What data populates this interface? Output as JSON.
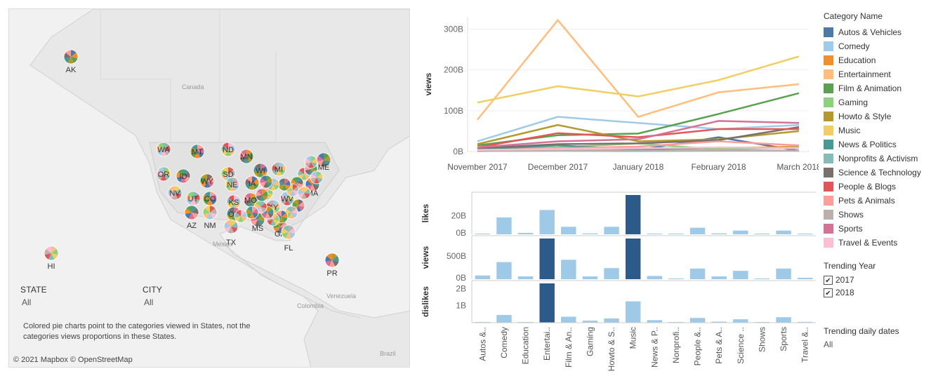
{
  "map": {
    "country_labels": [
      "Canada",
      "Mexico",
      "Colombia",
      "Venezuela",
      "Brazil"
    ],
    "state_labels": [
      "AK",
      "HI",
      "PR",
      "WA",
      "MT",
      "ND",
      "MN",
      "OR",
      "ID",
      "SD",
      "WI",
      "MI",
      "ME",
      "NV",
      "WY",
      "NE",
      "IA",
      "IL",
      "MA",
      "UT",
      "CO",
      "KS",
      "MO",
      "WV",
      "AZ",
      "NM",
      "OK",
      "KY",
      "MS",
      "TX",
      "GA",
      "FL"
    ],
    "attribution": "© 2021 Mapbox © OpenStreetMap",
    "note": "Colored pie charts point to the categories viewed in States, not the categories views proportions in these States."
  },
  "filters": {
    "state_label": "STATE",
    "state_value": "All",
    "city_label": "CITY",
    "city_value": "All",
    "trending_year_label": "Trending Year",
    "years": [
      "2017",
      "2018"
    ],
    "trending_dates_label": "Trending daily dates",
    "trending_dates_value": "All"
  },
  "legend": {
    "title": "Category Name",
    "items": [
      {
        "name": "Autos & Vehicles",
        "color": "#4e79a7"
      },
      {
        "name": "Comedy",
        "color": "#a0cbe8"
      },
      {
        "name": "Education",
        "color": "#f28e2b"
      },
      {
        "name": "Entertainment",
        "color": "#ffbe7d"
      },
      {
        "name": "Film & Animation",
        "color": "#59a14f"
      },
      {
        "name": "Gaming",
        "color": "#8cd17d"
      },
      {
        "name": "Howto & Style",
        "color": "#b6992d"
      },
      {
        "name": "Music",
        "color": "#f1ce63"
      },
      {
        "name": "News & Politics",
        "color": "#499894"
      },
      {
        "name": "Nonprofits & Activism",
        "color": "#86bcb6"
      },
      {
        "name": "Science & Technology",
        "color": "#79706e"
      },
      {
        "name": "People & Blogs",
        "color": "#e15759"
      },
      {
        "name": "Pets & Animals",
        "color": "#ff9d9a"
      },
      {
        "name": "Shows",
        "color": "#bab0ac"
      },
      {
        "name": "Sports",
        "color": "#d37295"
      },
      {
        "name": "Travel & Events",
        "color": "#fabfd2"
      }
    ]
  },
  "chart_data": [
    {
      "type": "line",
      "ylabel": "views",
      "x": [
        "November 2017",
        "December 2017",
        "January 2018",
        "February 2018",
        "March 2018"
      ],
      "y_ticks": [
        "0B",
        "100B",
        "200B",
        "300B"
      ],
      "ylim": [
        0,
        330
      ],
      "series": [
        {
          "name": "Autos & Vehicles",
          "color": "#4e79a7",
          "values": [
            2,
            3,
            4,
            35,
            2
          ]
        },
        {
          "name": "Comedy",
          "color": "#a0cbe8",
          "values": [
            25,
            85,
            70,
            55,
            65
          ]
        },
        {
          "name": "Education",
          "color": "#f28e2b",
          "values": [
            3,
            5,
            6,
            8,
            12
          ]
        },
        {
          "name": "Entertainment",
          "color": "#ffbe7d",
          "values": [
            78,
            322,
            85,
            145,
            165
          ]
        },
        {
          "name": "Film & Animation",
          "color": "#59a14f",
          "values": [
            15,
            40,
            44,
            92,
            143
          ]
        },
        {
          "name": "Gaming",
          "color": "#8cd17d",
          "values": [
            5,
            10,
            20,
            5,
            10
          ]
        },
        {
          "name": "Howto & Style",
          "color": "#b6992d",
          "values": [
            18,
            65,
            25,
            30,
            50
          ]
        },
        {
          "name": "Music",
          "color": "#f1ce63",
          "values": [
            120,
            160,
            135,
            175,
            233
          ]
        },
        {
          "name": "News & Politics",
          "color": "#499894",
          "values": [
            5,
            15,
            5,
            10,
            8
          ]
        },
        {
          "name": "Nonprofits & Activism",
          "color": "#86bcb6",
          "values": [
            1,
            2,
            1,
            2,
            2
          ]
        },
        {
          "name": "Science & Technology",
          "color": "#79706e",
          "values": [
            8,
            18,
            20,
            28,
            60
          ]
        },
        {
          "name": "People & Blogs",
          "color": "#e15759",
          "values": [
            10,
            45,
            35,
            55,
            55
          ]
        },
        {
          "name": "Pets & Animals",
          "color": "#ff9d9a",
          "values": [
            3,
            8,
            12,
            25,
            15
          ]
        },
        {
          "name": "Shows",
          "color": "#bab0ac",
          "values": [
            1,
            3,
            2,
            3,
            2
          ]
        },
        {
          "name": "Sports",
          "color": "#d37295",
          "values": [
            10,
            25,
            30,
            75,
            70
          ]
        },
        {
          "name": "Travel & Events",
          "color": "#fabfd2",
          "values": [
            4,
            6,
            8,
            10,
            8
          ]
        }
      ]
    },
    {
      "type": "bar",
      "categories": [
        "Autos &..",
        "Comedy",
        "Education",
        "Entertai..",
        "Film & An..",
        "Gaming",
        "Howto & S..",
        "Music",
        "News & P..",
        "Nonprofi..",
        "People &..",
        "Pets & A..",
        "Science ..",
        "Shows",
        "Sports",
        "Travel &.."
      ],
      "panels": [
        {
          "ylabel": "likes",
          "ticks": [
            "0B",
            "20B"
          ],
          "ylim": [
            0,
            42
          ],
          "values": [
            0.5,
            18,
            1.5,
            26,
            8,
            1,
            8,
            42,
            0.5,
            0,
            7,
            1,
            4,
            0,
            4,
            0.5
          ]
        },
        {
          "ylabel": "views",
          "ticks": [
            "0B",
            "500B"
          ],
          "ylim": [
            0,
            880
          ],
          "values": [
            80,
            370,
            60,
            880,
            420,
            60,
            240,
            880,
            70,
            0,
            230,
            60,
            180,
            0,
            230,
            30
          ]
        },
        {
          "ylabel": "dislikes",
          "ticks": [
            "1B",
            "2B"
          ],
          "ylim": [
            0,
            2.3
          ],
          "values": [
            0.03,
            0.45,
            0.04,
            2.3,
            0.35,
            0.12,
            0.25,
            1.25,
            0.15,
            0,
            0.28,
            0.06,
            0.2,
            0,
            0.32,
            0.05
          ]
        }
      ]
    }
  ]
}
